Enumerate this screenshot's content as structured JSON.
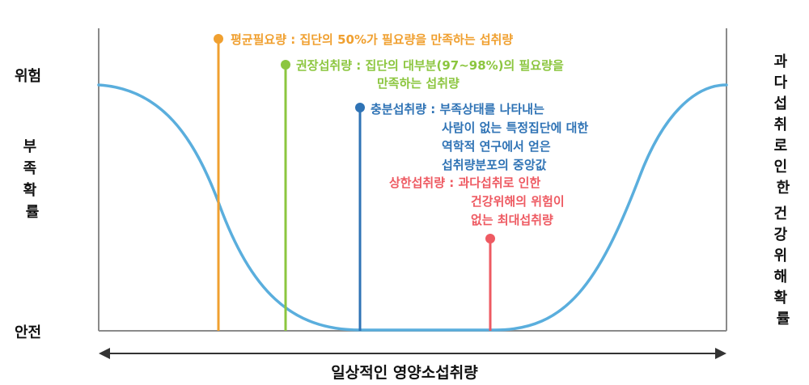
{
  "y_axis": {
    "top_label": "위험",
    "bottom_label": "안전",
    "title_chars": [
      "부",
      "족",
      "확",
      "률"
    ]
  },
  "right_axis": {
    "title_col1": [
      "과",
      "다",
      "섭",
      "취",
      "로",
      "인",
      "한"
    ],
    "title_col2": [
      "건",
      "강",
      "위",
      "해",
      "확",
      "률"
    ]
  },
  "x_axis": {
    "label": "일상적인 영양소섭취량"
  },
  "colors": {
    "ear": "#f0a030",
    "ri": "#8cc63f",
    "ai": "#2f73b5",
    "ul": "#ee5a62",
    "curve": "#5aaedd",
    "frame": "#888888",
    "arrow": "#333333"
  },
  "annotations": {
    "ear": {
      "lines": [
        "평균필요량 : 집단의 50%가 필요량을 만족하는 섭취량"
      ]
    },
    "ri": {
      "lines": [
        "권장섭취량 : 집단의 대부분(97~98%)의 필요량을",
        "만족하는 섭취량"
      ]
    },
    "ai": {
      "lines": [
        "충분섭취량 : 부족상태를 나타내는",
        "사람이 없는 특정집단에 대한",
        "역학적 연구에서 얻은",
        "섭취량분포의 중앙값"
      ]
    },
    "ul": {
      "lines": [
        "상한섭취량 : 과다섭취로 인한",
        "건강위해의 위험이",
        "없는 최대섭취량"
      ]
    }
  }
}
